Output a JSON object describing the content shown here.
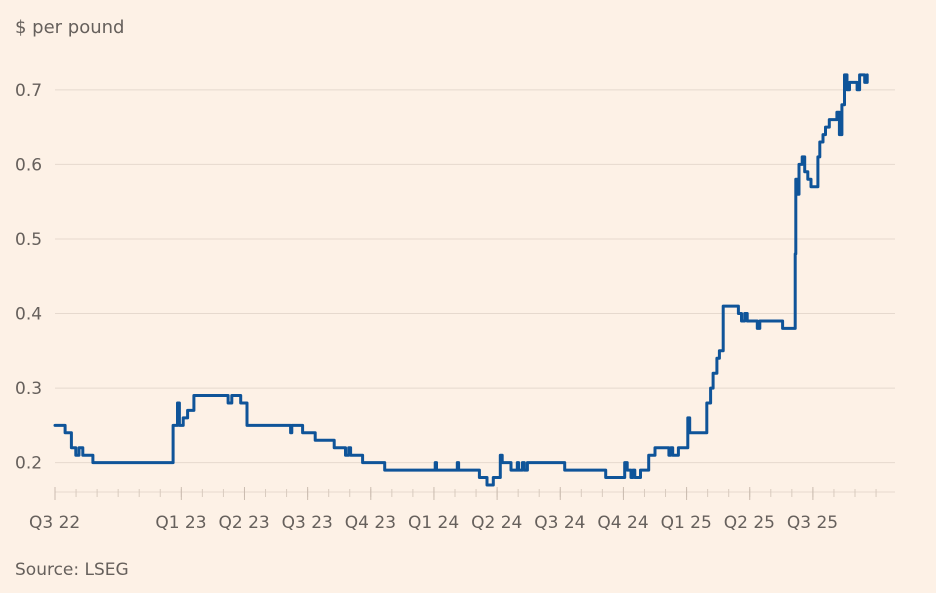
{
  "chart_data": {
    "type": "line",
    "title_fragment": "",
    "ylabel": "$ per pound",
    "source": "Source: LSEG",
    "ylim": [
      0.17,
      0.74
    ],
    "yticks": [
      0.2,
      0.3,
      0.4,
      0.5,
      0.6,
      0.7
    ],
    "grid": "horizontal",
    "xticks": [
      {
        "label": "Q3 22",
        "t": 0
      },
      {
        "label": "Q1 23",
        "t": 2
      },
      {
        "label": "Q2 23",
        "t": 3
      },
      {
        "label": "Q3 23",
        "t": 4
      },
      {
        "label": "Q4 23",
        "t": 5
      },
      {
        "label": "Q1 24",
        "t": 6
      },
      {
        "label": "Q2 24",
        "t": 7
      },
      {
        "label": "Q3 24",
        "t": 8
      },
      {
        "label": "Q4 24",
        "t": 9
      },
      {
        "label": "Q1 25",
        "t": 10
      },
      {
        "label": "Q2 25",
        "t": 11
      },
      {
        "label": "Q3 25",
        "t": 12
      }
    ],
    "x_range": [
      0,
      13.3
    ],
    "series": [
      {
        "color": "#0f5499",
        "step": true,
        "points": [
          [
            0.0,
            0.25
          ],
          [
            0.14,
            0.25
          ],
          [
            0.16,
            0.24
          ],
          [
            0.24,
            0.24
          ],
          [
            0.26,
            0.22
          ],
          [
            0.31,
            0.22
          ],
          [
            0.33,
            0.21
          ],
          [
            0.36,
            0.21
          ],
          [
            0.38,
            0.22
          ],
          [
            0.42,
            0.22
          ],
          [
            0.44,
            0.21
          ],
          [
            0.58,
            0.21
          ],
          [
            0.6,
            0.2
          ],
          [
            1.85,
            0.2
          ],
          [
            1.87,
            0.25
          ],
          [
            1.94,
            0.28
          ],
          [
            1.97,
            0.25
          ],
          [
            2.03,
            0.26
          ],
          [
            2.1,
            0.27
          ],
          [
            2.2,
            0.29
          ],
          [
            2.72,
            0.29
          ],
          [
            2.74,
            0.28
          ],
          [
            2.78,
            0.28
          ],
          [
            2.8,
            0.29
          ],
          [
            2.92,
            0.29
          ],
          [
            2.94,
            0.28
          ],
          [
            3.02,
            0.28
          ],
          [
            3.04,
            0.25
          ],
          [
            3.7,
            0.25
          ],
          [
            3.73,
            0.24
          ],
          [
            3.75,
            0.25
          ],
          [
            3.9,
            0.25
          ],
          [
            3.92,
            0.24
          ],
          [
            4.1,
            0.24
          ],
          [
            4.12,
            0.23
          ],
          [
            4.4,
            0.23
          ],
          [
            4.42,
            0.22
          ],
          [
            4.58,
            0.22
          ],
          [
            4.6,
            0.21
          ],
          [
            4.63,
            0.21
          ],
          [
            4.65,
            0.22
          ],
          [
            4.68,
            0.21
          ],
          [
            4.85,
            0.21
          ],
          [
            4.87,
            0.2
          ],
          [
            5.2,
            0.2
          ],
          [
            5.22,
            0.19
          ],
          [
            6.0,
            0.19
          ],
          [
            6.02,
            0.2
          ],
          [
            6.04,
            0.19
          ],
          [
            6.35,
            0.19
          ],
          [
            6.37,
            0.2
          ],
          [
            6.39,
            0.19
          ],
          [
            6.7,
            0.19
          ],
          [
            6.72,
            0.18
          ],
          [
            6.82,
            0.18
          ],
          [
            6.84,
            0.17
          ],
          [
            6.92,
            0.17
          ],
          [
            6.94,
            0.18
          ],
          [
            7.02,
            0.18
          ],
          [
            7.05,
            0.21
          ],
          [
            7.08,
            0.2
          ],
          [
            7.2,
            0.2
          ],
          [
            7.22,
            0.19
          ],
          [
            7.3,
            0.19
          ],
          [
            7.32,
            0.2
          ],
          [
            7.34,
            0.19
          ],
          [
            7.38,
            0.19
          ],
          [
            7.4,
            0.2
          ],
          [
            7.43,
            0.19
          ],
          [
            7.48,
            0.2
          ],
          [
            7.55,
            0.2
          ],
          [
            7.58,
            0.2
          ],
          [
            8.05,
            0.2
          ],
          [
            8.07,
            0.19
          ],
          [
            8.7,
            0.19
          ],
          [
            8.72,
            0.18
          ],
          [
            9.0,
            0.18
          ],
          [
            9.02,
            0.2
          ],
          [
            9.06,
            0.19
          ],
          [
            9.1,
            0.19
          ],
          [
            9.12,
            0.18
          ],
          [
            9.15,
            0.19
          ],
          [
            9.18,
            0.18
          ],
          [
            9.25,
            0.18
          ],
          [
            9.27,
            0.19
          ],
          [
            9.38,
            0.19
          ],
          [
            9.4,
            0.21
          ],
          [
            9.48,
            0.21
          ],
          [
            9.5,
            0.22
          ],
          [
            9.7,
            0.22
          ],
          [
            9.72,
            0.21
          ],
          [
            9.75,
            0.22
          ],
          [
            9.78,
            0.21
          ],
          [
            9.85,
            0.21
          ],
          [
            9.87,
            0.22
          ],
          [
            10.0,
            0.22
          ],
          [
            10.02,
            0.26
          ],
          [
            10.05,
            0.24
          ],
          [
            10.3,
            0.24
          ],
          [
            10.32,
            0.28
          ],
          [
            10.38,
            0.3
          ],
          [
            10.42,
            0.32
          ],
          [
            10.48,
            0.34
          ],
          [
            10.52,
            0.35
          ],
          [
            10.58,
            0.41
          ],
          [
            10.8,
            0.41
          ],
          [
            10.82,
            0.4
          ],
          [
            10.87,
            0.39
          ],
          [
            10.92,
            0.4
          ],
          [
            10.96,
            0.39
          ],
          [
            11.1,
            0.39
          ],
          [
            11.12,
            0.38
          ],
          [
            11.16,
            0.39
          ],
          [
            11.5,
            0.39
          ],
          [
            11.52,
            0.38
          ],
          [
            11.7,
            0.38
          ],
          [
            11.72,
            0.48
          ],
          [
            11.73,
            0.58
          ],
          [
            11.76,
            0.56
          ],
          [
            11.78,
            0.6
          ],
          [
            11.83,
            0.61
          ],
          [
            11.87,
            0.59
          ],
          [
            11.92,
            0.58
          ],
          [
            11.97,
            0.57
          ],
          [
            12.05,
            0.57
          ],
          [
            12.08,
            0.61
          ],
          [
            12.11,
            0.63
          ],
          [
            12.16,
            0.64
          ],
          [
            12.2,
            0.65
          ],
          [
            12.26,
            0.66
          ],
          [
            12.34,
            0.66
          ],
          [
            12.38,
            0.67
          ],
          [
            12.42,
            0.64
          ],
          [
            12.46,
            0.68
          ],
          [
            12.5,
            0.72
          ],
          [
            12.54,
            0.7
          ],
          [
            12.58,
            0.71
          ],
          [
            12.66,
            0.71
          ],
          [
            12.7,
            0.7
          ],
          [
            12.74,
            0.72
          ],
          [
            12.82,
            0.71
          ],
          [
            12.86,
            0.72
          ]
        ]
      }
    ]
  }
}
